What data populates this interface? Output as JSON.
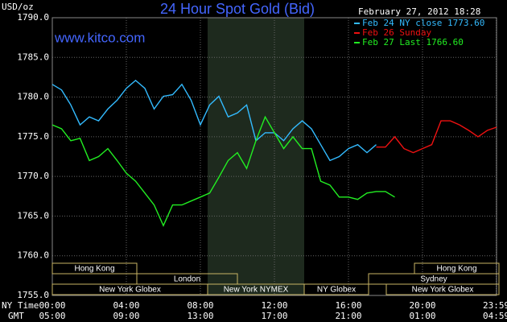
{
  "chart_data": {
    "type": "line",
    "title": "24 Hour Spot Gold (Bid)",
    "site": "www.kitco.com",
    "timestamp": "February 27, 2012 18:28",
    "y_label": "USD/oz",
    "x_label": "NY Time",
    "x2_label": "GMT",
    "grid": true,
    "xlim": [
      0,
      24
    ],
    "ylim": [
      1755,
      1790
    ],
    "yticks": [
      {
        "value": 1755,
        "label": "1755.0"
      },
      {
        "value": 1760,
        "label": "1760.0"
      },
      {
        "value": 1765,
        "label": "1765.0"
      },
      {
        "value": 1770,
        "label": "1770.0"
      },
      {
        "value": 1775,
        "label": "1775.0"
      },
      {
        "value": 1780,
        "label": "1780.0"
      },
      {
        "value": 1785,
        "label": "1785.0"
      },
      {
        "value": 1790,
        "label": "1790.0"
      }
    ],
    "xticks": [
      {
        "value": 0,
        "label": "00:00"
      },
      {
        "value": 4,
        "label": "04:00"
      },
      {
        "value": 8,
        "label": "08:00"
      },
      {
        "value": 12,
        "label": "12:00"
      },
      {
        "value": 16,
        "label": "16:00"
      },
      {
        "value": 20,
        "label": "20:00"
      },
      {
        "value": 23.983,
        "label": "23:59"
      }
    ],
    "x2ticks": [
      {
        "value": 0,
        "label": "05:00"
      },
      {
        "value": 4,
        "label": "09:00"
      },
      {
        "value": 8,
        "label": "13:00"
      },
      {
        "value": 12,
        "label": "17:00"
      },
      {
        "value": 16,
        "label": "21:00"
      },
      {
        "value": 20,
        "label": "01:00"
      },
      {
        "value": 23.983,
        "label": "04:59"
      }
    ],
    "sessions": [
      "Hong Kong",
      "London",
      "New York Globex",
      "New York NYMEX",
      "NY Globex",
      "Sydney",
      "Hong Kong",
      "New York Globex"
    ],
    "series": [
      {
        "name": "Feb 24 NY close 1773.60",
        "color": "#33bbff",
        "x": [
          0,
          0.5,
          1,
          1.5,
          2,
          2.5,
          3,
          3.5,
          4,
          4.5,
          5,
          5.5,
          6,
          6.5,
          7,
          7.5,
          8,
          8.5,
          9,
          9.5,
          10,
          10.5,
          11,
          11.5,
          12,
          12.5,
          13,
          13.5,
          14,
          14.5,
          15,
          15.5,
          16,
          16.5,
          17,
          17.5
        ],
        "values": [
          1781.6,
          1780.9,
          1779.0,
          1776.5,
          1777.5,
          1777.0,
          1778.5,
          1779.6,
          1781.1,
          1782.1,
          1781.1,
          1778.5,
          1780.1,
          1780.3,
          1781.6,
          1779.6,
          1776.5,
          1779.0,
          1780.1,
          1777.5,
          1778.0,
          1779.0,
          1774.5,
          1775.5,
          1775.5,
          1774.5,
          1776.0,
          1777.0,
          1776.0,
          1774.0,
          1772.0,
          1772.5,
          1773.5,
          1774.0,
          1773.0,
          1774.0
        ]
      },
      {
        "name": "Feb 26 Sunday",
        "color": "#ee1111",
        "x": [
          17.5,
          18,
          18.5,
          19,
          19.5,
          20,
          20.5,
          21,
          21.5,
          22,
          22.5,
          23,
          23.5,
          24
        ],
        "values": [
          1773.7,
          1773.7,
          1775.0,
          1773.5,
          1773.0,
          1773.5,
          1774.0,
          1777.0,
          1777.0,
          1776.5,
          1775.8,
          1775.0,
          1775.8,
          1776.2
        ]
      },
      {
        "name": "Feb 27 Last 1766.60",
        "color": "#22ee22",
        "x": [
          0,
          0.5,
          1,
          1.5,
          2,
          2.5,
          3,
          3.5,
          4,
          4.5,
          5,
          5.5,
          6,
          6.5,
          7,
          7.5,
          8,
          8.5,
          9,
          9.5,
          10,
          10.5,
          11,
          11.5,
          12,
          12.5,
          13,
          13.5,
          14,
          14.5,
          15,
          15.5,
          16,
          16.5,
          17,
          17.5,
          18,
          18.5
        ],
        "values": [
          1776.5,
          1776.0,
          1774.5,
          1774.8,
          1772.0,
          1772.5,
          1773.5,
          1772.0,
          1770.4,
          1769.4,
          1767.9,
          1766.4,
          1763.8,
          1766.4,
          1766.4,
          1766.9,
          1767.4,
          1767.9,
          1769.9,
          1772.0,
          1773.0,
          1771.0,
          1774.5,
          1777.5,
          1775.5,
          1773.5,
          1775.0,
          1773.5,
          1773.5,
          1769.4,
          1768.9,
          1767.4,
          1767.4,
          1767.1,
          1767.9,
          1768.1,
          1768.1,
          1767.4
        ]
      }
    ]
  }
}
